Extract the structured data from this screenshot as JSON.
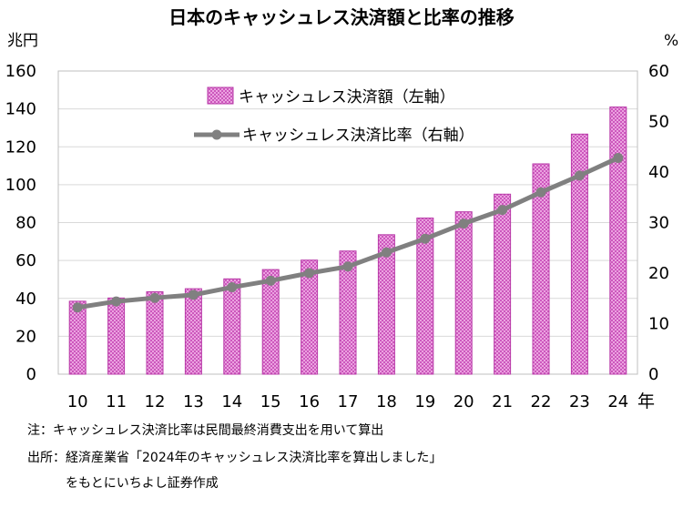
{
  "chart_data": {
    "type": "bar",
    "title": "日本のキャッシュレス決済額と比率の推移",
    "left_unit": "兆円",
    "right_unit": "%",
    "x_unit": "年",
    "categories": [
      "10",
      "11",
      "12",
      "13",
      "14",
      "15",
      "16",
      "17",
      "18",
      "19",
      "20",
      "21",
      "22",
      "23",
      "24"
    ],
    "series": [
      {
        "name": "キャッシュレス決済額（左軸）",
        "type": "bar",
        "axis": "left",
        "values": [
          38.5,
          40.2,
          43.5,
          45.1,
          50.3,
          55.2,
          60.2,
          65.0,
          73.6,
          82.4,
          85.7,
          95.0,
          111.0,
          126.7,
          141.0
        ],
        "color": "#e87fdb"
      },
      {
        "name": "キャッシュレス決済比率（右軸）",
        "type": "line",
        "axis": "right",
        "values": [
          13.2,
          14.4,
          15.1,
          15.7,
          17.2,
          18.5,
          20.0,
          21.3,
          24.1,
          26.8,
          29.8,
          32.5,
          36.0,
          39.3,
          42.8
        ],
        "color": "#808080"
      }
    ],
    "left_ylim": [
      0,
      160
    ],
    "left_yticks": [
      0,
      20,
      40,
      60,
      80,
      100,
      120,
      140,
      160
    ],
    "right_ylim": [
      0,
      60
    ],
    "right_yticks": [
      0,
      10,
      20,
      30,
      40,
      50,
      60
    ],
    "grid": true,
    "legend_placement": "top-left"
  },
  "notes": {
    "note": "注：キャッシュレス決済比率は民間最終消費支出を用いて算出",
    "source_line1": "出所：経済産業省「2024年のキャッシュレス決済比率を算出しました」",
    "source_line2": "をもとにいちよし証券作成"
  }
}
